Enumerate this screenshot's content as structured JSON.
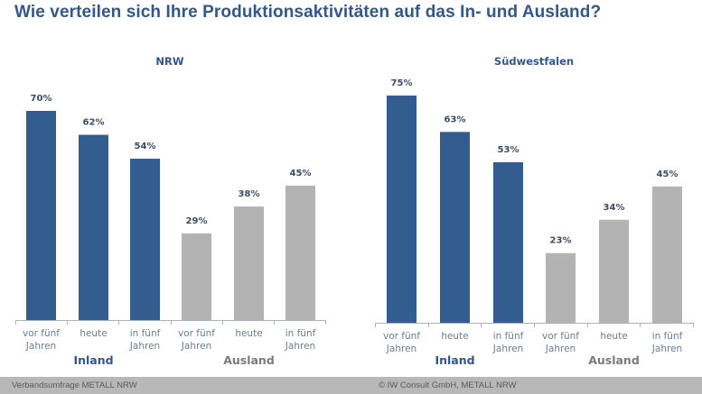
{
  "header": {
    "title": "Wie verteilen sich Ihre Produktionsaktivitäten auf das In- und Ausland?"
  },
  "footer": {
    "left": "Verbandsumfrage METALL NRW",
    "right": "© IW Consult GmbH, METALL NRW"
  },
  "colors": {
    "title": "#34578a",
    "inland": "#345d8f",
    "ausland": "#b3b3b3",
    "inland_label": "#34578a",
    "ausland_label": "#7b7b7b",
    "footer_bg": "#b8b8b8"
  },
  "chart_data": [
    {
      "type": "bar",
      "title": "NRW",
      "categories": [
        [
          "vor fünf",
          "Jahren"
        ],
        [
          "heute"
        ],
        [
          "in fünf",
          "Jahren"
        ],
        [
          "vor fünf",
          "Jahren"
        ],
        [
          "heute"
        ],
        [
          "in fünf",
          "Jahren"
        ]
      ],
      "groups": [
        {
          "name": "Inland",
          "indices": [
            0,
            1,
            2
          ]
        },
        {
          "name": "Ausland",
          "indices": [
            3,
            4,
            5
          ]
        }
      ],
      "values": [
        70,
        62,
        54,
        29,
        38,
        45
      ],
      "value_labels": [
        "70%",
        "62%",
        "54%",
        "29%",
        "38%",
        "45%"
      ],
      "unit": "%",
      "xlabel": "",
      "ylabel": "",
      "ylim": [
        0,
        70
      ],
      "grid": false,
      "legend": "none"
    },
    {
      "type": "bar",
      "title": "Südwestfalen",
      "categories": [
        [
          "vor fünf",
          "Jahren"
        ],
        [
          "heute"
        ],
        [
          "in fünf",
          "Jahren"
        ],
        [
          "vor fünf",
          "Jahren"
        ],
        [
          "heute"
        ],
        [
          "in fünf",
          "Jahren"
        ]
      ],
      "groups": [
        {
          "name": "Inland",
          "indices": [
            0,
            1,
            2
          ]
        },
        {
          "name": "Ausland",
          "indices": [
            3,
            4,
            5
          ]
        }
      ],
      "values": [
        75,
        63,
        53,
        23,
        34,
        45
      ],
      "value_labels": [
        "75%",
        "63%",
        "53%",
        "23%",
        "34%",
        "45%"
      ],
      "unit": "%",
      "xlabel": "",
      "ylabel": "",
      "ylim": [
        0,
        75
      ],
      "grid": false,
      "legend": "none"
    }
  ]
}
